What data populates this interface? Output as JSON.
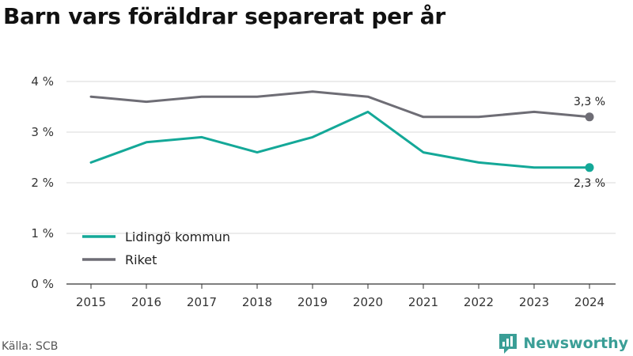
{
  "title": "Barn vars föräldrar separerat per år",
  "source": "Källa: SCB",
  "brand": "Newsworthy",
  "chart_data": {
    "type": "line",
    "x": [
      "2015",
      "2016",
      "2017",
      "2018",
      "2019",
      "2020",
      "2021",
      "2022",
      "2023",
      "2024"
    ],
    "series": [
      {
        "name": "Lidingö kommun",
        "color": "#14a898",
        "values": [
          2.4,
          2.8,
          2.9,
          2.6,
          2.9,
          3.4,
          2.6,
          2.4,
          2.3,
          2.3
        ],
        "end_label": "2,3 %"
      },
      {
        "name": "Riket",
        "color": "#6e6d75",
        "values": [
          3.7,
          3.6,
          3.7,
          3.7,
          3.8,
          3.7,
          3.3,
          3.3,
          3.4,
          3.3
        ],
        "end_label": "3,3 %"
      }
    ],
    "yticks": [
      0,
      1,
      2,
      3,
      4
    ],
    "ytick_labels": [
      "0 %",
      "1 %",
      "2 %",
      "3 %",
      "4 %"
    ],
    "ylim": [
      0,
      4
    ],
    "grid": true,
    "legend": "bottom-left"
  }
}
